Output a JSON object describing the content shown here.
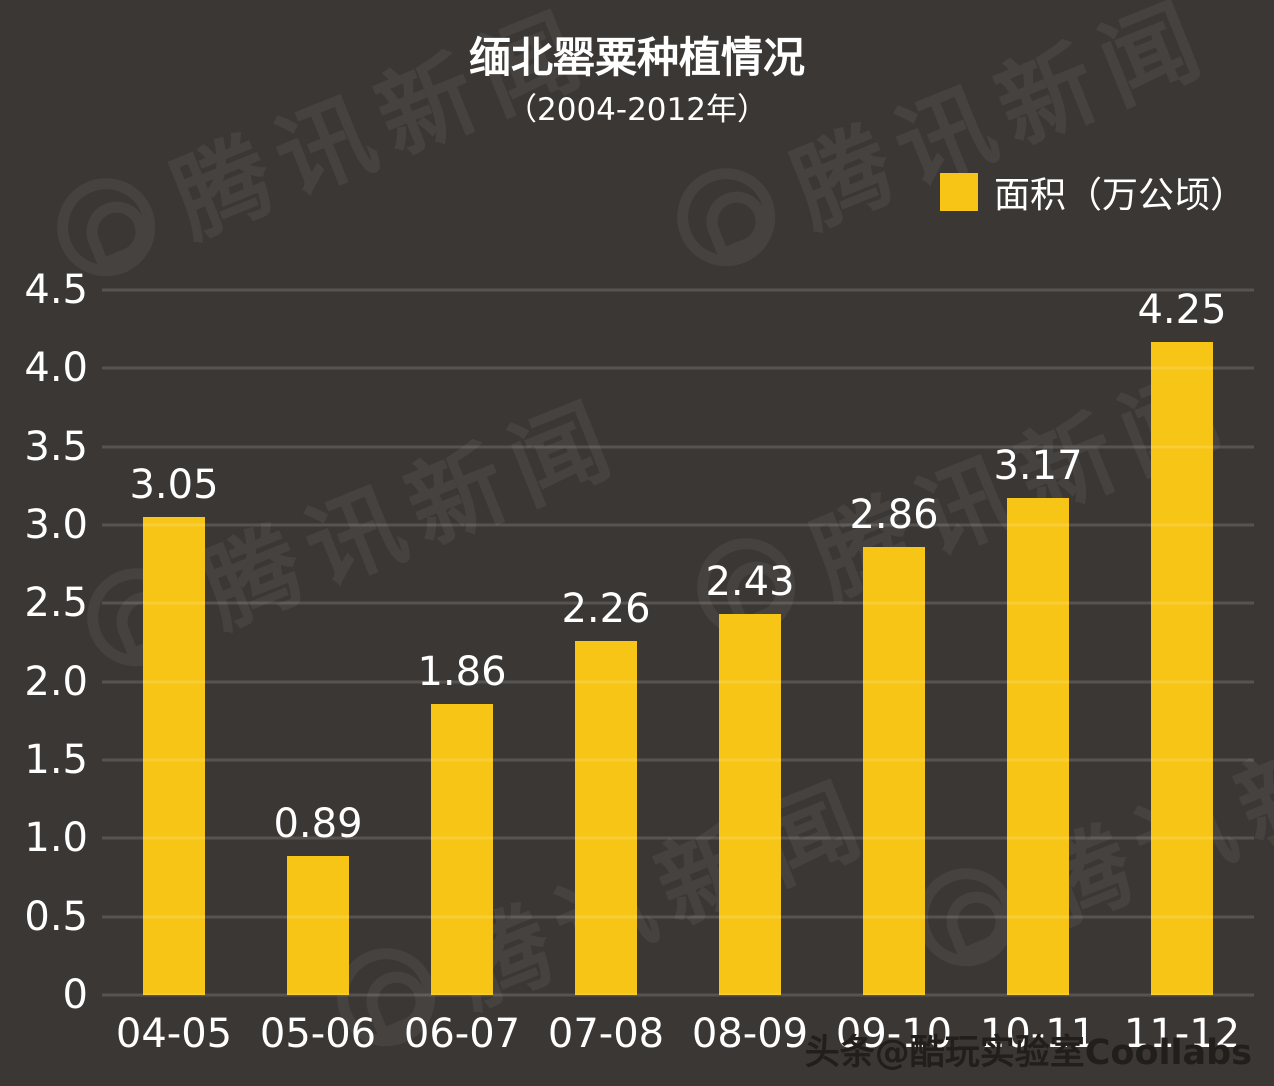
{
  "page": {
    "background_color": "#3B3734"
  },
  "header": {
    "title": "缅北罂粟种植情况",
    "subtitle": "（2004-2012年）"
  },
  "legend": {
    "label": "面积（万公顷）",
    "swatch_color": "#F7C515"
  },
  "watermark": {
    "text": "腾讯新闻",
    "icon": "tencent-news-logo"
  },
  "credit": "头条@酷玩实验室Coollabs",
  "chart_data": {
    "type": "bar",
    "title": "缅北罂粟种植情况",
    "subtitle": "（2004-2012年）",
    "series_name": "面积（万公顷）",
    "categories": [
      "04-05",
      "05-06",
      "06-07",
      "07-08",
      "08-09",
      "09-10",
      "10-11",
      "11-12"
    ],
    "values": [
      3.05,
      0.89,
      1.86,
      2.26,
      2.43,
      2.86,
      3.17,
      4.25
    ],
    "value_labels": [
      "3.05",
      "0.89",
      "1.86",
      "2.26",
      "2.43",
      "2.86",
      "3.17",
      "4.25"
    ],
    "xlabel": "",
    "ylabel": "",
    "ylim": [
      0,
      4.5
    ],
    "yticks": [
      0,
      0.5,
      1.0,
      1.5,
      2.0,
      2.5,
      3.0,
      3.5,
      4.0,
      4.5
    ],
    "ytick_labels": [
      "0",
      "0.5",
      "1.0",
      "1.5",
      "2.0",
      "2.5",
      "3.0",
      "3.5",
      "4.0",
      "4.5"
    ],
    "grid": true,
    "legend_position": "top-right",
    "bar_color": "#F7C515",
    "background_color": "#3B3734",
    "text_color": "#FFFFFF"
  }
}
